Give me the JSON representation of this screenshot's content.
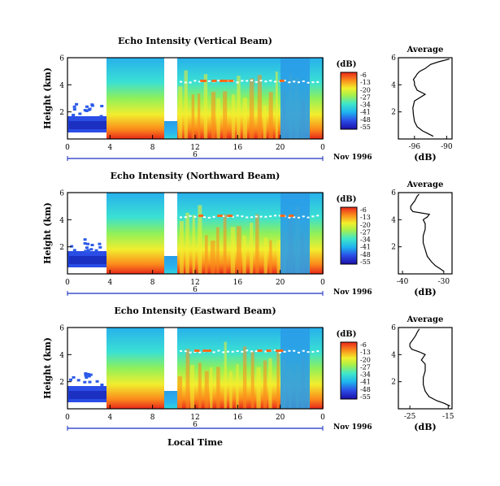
{
  "xlabel_bottom": "Local Time",
  "date_label": "Nov 1996",
  "day_label": "6",
  "avg_title": "Average",
  "avg_xlabel": "(dB)",
  "cbar_title": "(dB)",
  "colorbar_ticks": [
    "-6",
    "-13",
    "-20",
    "-27",
    "-34",
    "-41",
    "-48",
    "-55"
  ],
  "chart_data": [
    {
      "type": "heatmap",
      "title": "Echo Intensity (Vertical Beam)",
      "xlabel": "",
      "ylabel": "Height (km)",
      "x_ticks": [
        "0",
        "4",
        "8",
        "12",
        "16",
        "20",
        "0"
      ],
      "y_ticks": [
        "6",
        "4",
        "2"
      ],
      "xlim": [
        0,
        24
      ],
      "ylim": [
        0,
        6
      ],
      "colorbar_range": [
        -55,
        -6
      ]
    },
    {
      "type": "line",
      "title": "Average",
      "xlabel": "(dB)",
      "ylabel": "",
      "x_ticks": [
        "-96",
        "-90"
      ],
      "y_ticks": [
        "6",
        "4",
        "2"
      ],
      "xlim": [
        -99,
        -89
      ],
      "ylim": [
        0,
        6
      ],
      "x": [
        -92.5,
        -93.5,
        -94.5,
        -95.5,
        -96.0,
        -96.2,
        -96.3,
        -96.0,
        -94.0,
        -95.5,
        -96.0,
        -96.0,
        -96.2,
        -95.8,
        -95.5,
        -95.0,
        -94.0,
        -93.0,
        -91.5,
        -89.5
      ],
      "y": [
        0.2,
        0.4,
        0.6,
        0.9,
        1.3,
        1.8,
        2.3,
        2.8,
        3.3,
        3.6,
        4.0,
        4.2,
        4.4,
        4.6,
        4.8,
        5.0,
        5.2,
        5.5,
        5.7,
        5.9
      ]
    },
    {
      "type": "heatmap",
      "title": "Echo Intensity (Northward Beam)",
      "xlabel": "",
      "ylabel": "Height (km)",
      "x_ticks": [
        "0",
        "4",
        "8",
        "12",
        "16",
        "20",
        "0"
      ],
      "y_ticks": [
        "6",
        "4",
        "2"
      ],
      "xlim": [
        0,
        24
      ],
      "ylim": [
        0,
        6
      ],
      "colorbar_range": [
        -55,
        -6
      ]
    },
    {
      "type": "line",
      "title": "Average",
      "xlabel": "(dB)",
      "ylabel": "",
      "x_ticks": [
        "-40",
        "-30"
      ],
      "y_ticks": [
        "6",
        "4",
        "2"
      ],
      "xlim": [
        -41,
        -28
      ],
      "ylim": [
        0,
        6
      ],
      "x": [
        -30.0,
        -31.0,
        -32.0,
        -33.0,
        -34.0,
        -34.5,
        -35.0,
        -35.0,
        -34.5,
        -34.5,
        -35.0,
        -34.0,
        -33.5,
        -37.5,
        -38.0,
        -38.0,
        -37.5,
        -37.0,
        -36.5,
        -36.0
      ],
      "y": [
        0.2,
        0.4,
        0.6,
        0.9,
        1.3,
        1.8,
        2.3,
        2.8,
        3.3,
        3.7,
        4.0,
        4.2,
        4.4,
        4.6,
        4.8,
        5.0,
        5.2,
        5.4,
        5.7,
        5.9
      ]
    },
    {
      "type": "heatmap",
      "title": "Echo Intensity (Eastward Beam)",
      "xlabel": "Local Time",
      "ylabel": "Height (km)",
      "x_ticks": [
        "0",
        "4",
        "8",
        "12",
        "16",
        "20",
        "0"
      ],
      "y_ticks": [
        "6",
        "4",
        "2"
      ],
      "xlim": [
        0,
        24
      ],
      "ylim": [
        0,
        6
      ],
      "colorbar_range": [
        -55,
        -6
      ]
    },
    {
      "type": "line",
      "title": "Average",
      "xlabel": "(dB)",
      "ylabel": "",
      "x_ticks": [
        "-25",
        "-15"
      ],
      "y_ticks": [
        "6",
        "4",
        "2"
      ],
      "xlim": [
        -28,
        -14
      ],
      "ylim": [
        0,
        6
      ],
      "x": [
        -14.5,
        -16.0,
        -18.0,
        -20.0,
        -21.0,
        -21.5,
        -21.5,
        -21.0,
        -21.0,
        -22.0,
        -21.0,
        -22.5,
        -24.5,
        -25.0,
        -25.0,
        -24.5,
        -24.0,
        -23.5,
        -23.0,
        -22.5
      ],
      "y": [
        0.2,
        0.4,
        0.6,
        0.9,
        1.3,
        1.8,
        2.3,
        2.8,
        3.3,
        3.6,
        4.0,
        4.2,
        4.4,
        4.6,
        4.8,
        5.0,
        5.2,
        5.4,
        5.7,
        5.9
      ]
    }
  ]
}
